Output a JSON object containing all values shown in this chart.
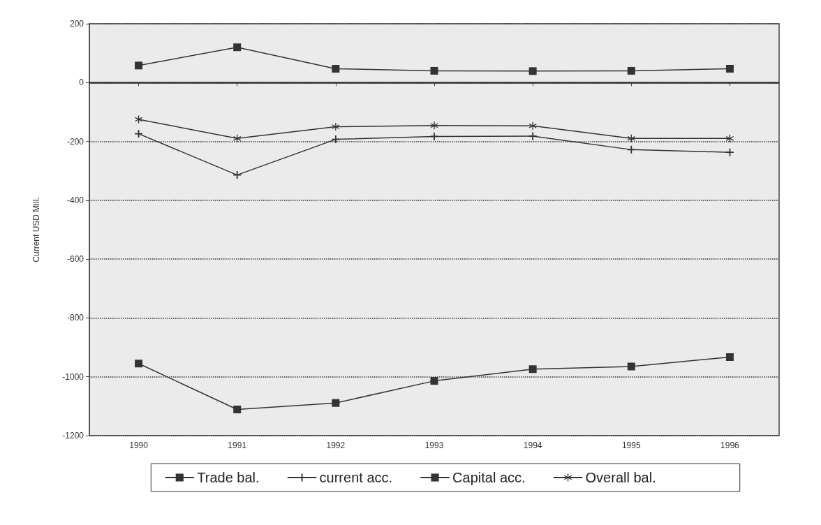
{
  "chart_data": {
    "type": "line",
    "ylabel": "Current USD Mill.",
    "categories": [
      "1990",
      "1991",
      "1992",
      "1993",
      "1994",
      "1995",
      "1996"
    ],
    "series": [
      {
        "name": "Trade bal.",
        "color": "#333333",
        "marker": "square",
        "values": [
          -955,
          -1111,
          -1089,
          -1014,
          -974,
          -965,
          -933
        ]
      },
      {
        "name": "current acc.",
        "color": "#333333",
        "marker": "cross",
        "values": [
          -174,
          -314,
          -193,
          -183,
          -182,
          -228,
          -237
        ]
      },
      {
        "name": "Capital acc.",
        "color": "#333333",
        "marker": "square",
        "values": [
          58,
          120,
          47,
          40,
          39,
          40,
          47
        ]
      },
      {
        "name": "Overall bal.",
        "color": "#333333",
        "marker": "star",
        "values": [
          -125,
          -190,
          -150,
          -146,
          -147,
          -190,
          -190
        ]
      }
    ],
    "ylim": [
      -1200,
      200
    ],
    "yticks": [
      -1200,
      -1000,
      -800,
      -600,
      -400,
      -200,
      0,
      200
    ],
    "grid": "y",
    "legend": "bottom",
    "line_style": "solid",
    "ref_lines": [
      {
        "axis": "y",
        "value": 0,
        "label": null,
        "line_style": "solid",
        "color": "#333333"
      }
    ]
  }
}
